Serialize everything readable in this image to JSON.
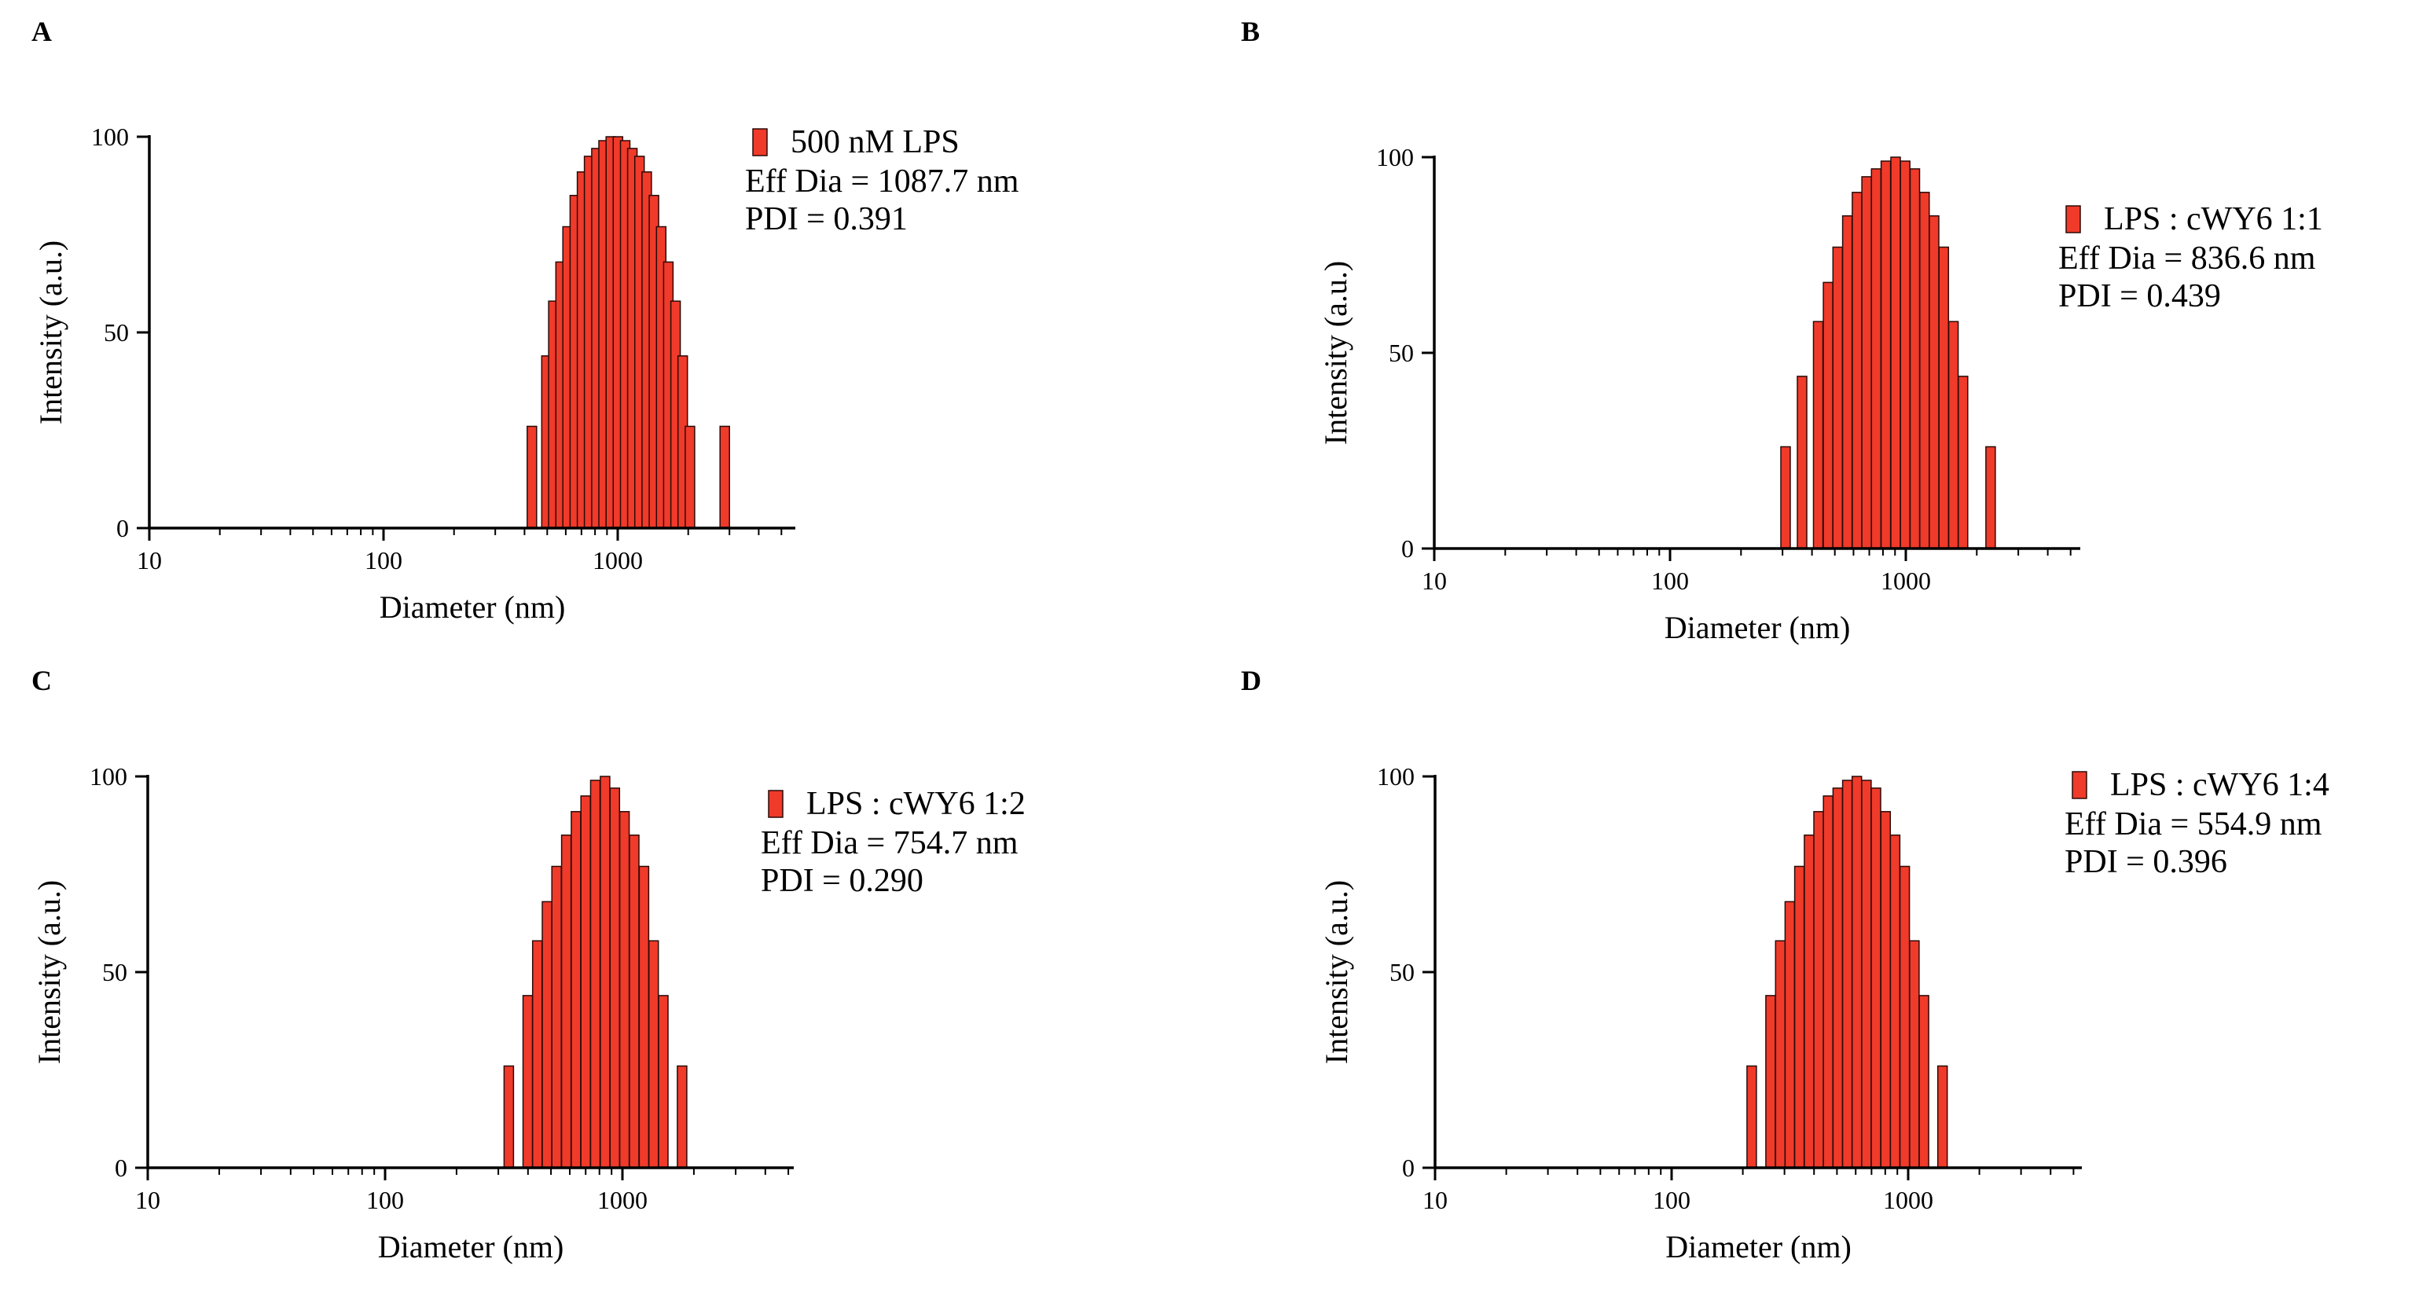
{
  "chart_data": [
    {
      "type": "bar",
      "panel": "A",
      "x": [
        430,
        496,
        531,
        570,
        611,
        656,
        704,
        755,
        811,
        870,
        934,
        1002,
        1076,
        1155,
        1239,
        1330,
        1428,
        1533,
        1645,
        1766,
        1895,
        2034,
        2184,
        2344,
        2865
      ],
      "values": [
        26,
        44,
        58,
        68,
        77,
        85,
        91,
        95,
        97,
        99,
        100,
        100,
        99,
        97,
        95,
        91,
        85,
        77,
        68,
        58,
        44,
        26,
        0,
        0,
        26
      ],
      "legend": "500 nM LPS",
      "annotations": [
        "Eff Dia = 1087.7 nm",
        "PDI = 0.391"
      ],
      "xlabel": "Diameter (nm)",
      "ylabel": "Intensity (a.u.)",
      "xscale": "log",
      "xlim": [
        10,
        5000
      ],
      "ylim": [
        0,
        100
      ],
      "xticks": [
        "10",
        "100",
        "1000"
      ],
      "yticks": [
        "0",
        "50",
        "100"
      ]
    },
    {
      "type": "bar",
      "panel": "B",
      "x": [
        309,
        363,
        425,
        468,
        514,
        565,
        621,
        682,
        749,
        823,
        905,
        994,
        1092,
        1200,
        1318,
        1449,
        1592,
        1749,
        2289
      ],
      "values": [
        26,
        44,
        58,
        68,
        77,
        85,
        91,
        95,
        97,
        99,
        100,
        99,
        97,
        91,
        85,
        77,
        58,
        44,
        26
      ],
      "legend": "LPS : cWY6 1:1",
      "annotations": [
        "Eff Dia = 836.6 nm",
        "PDI = 0.439"
      ],
      "xlabel": "Diameter (nm)",
      "ylabel": "Intensity (a.u.)",
      "xscale": "log",
      "xlim": [
        10,
        5000
      ],
      "ylim": [
        0,
        100
      ],
      "xticks": [
        "10",
        "100",
        "1000"
      ],
      "yticks": [
        "0",
        "50",
        "100"
      ]
    },
    {
      "type": "bar",
      "panel": "C",
      "x": [
        332,
        399,
        438,
        481,
        528,
        580,
        637,
        700,
        769,
        845,
        929,
        1020,
        1121,
        1232,
        1353,
        1487,
        1784
      ],
      "values": [
        26,
        44,
        58,
        68,
        77,
        85,
        91,
        95,
        99,
        100,
        97,
        91,
        85,
        77,
        58,
        44,
        26
      ],
      "legend": "LPS : cWY6 1:2",
      "annotations": [
        "Eff Dia = 754.7 nm",
        "PDI = 0.290"
      ],
      "xlabel": "Diameter (nm)",
      "ylabel": "Intensity (a.u.)",
      "xscale": "log",
      "xlim": [
        10,
        5000
      ],
      "ylim": [
        0,
        100
      ],
      "xticks": [
        "10",
        "100",
        "1000"
      ],
      "yticks": [
        "0",
        "50",
        "100"
      ]
    },
    {
      "type": "bar",
      "panel": "D",
      "x": [
        218,
        262,
        288,
        316,
        347,
        381,
        418,
        459,
        504,
        553,
        607,
        666,
        731,
        803,
        881,
        967,
        1062,
        1166,
        1397
      ],
      "values": [
        26,
        44,
        58,
        68,
        77,
        85,
        91,
        95,
        97,
        99,
        100,
        99,
        97,
        91,
        85,
        77,
        58,
        44,
        26
      ],
      "legend": "LPS : cWY6 1:4",
      "annotations": [
        "Eff Dia = 554.9 nm",
        "PDI = 0.396"
      ],
      "xlabel": "Diameter (nm)",
      "ylabel": "Intensity (a.u.)",
      "xscale": "log",
      "xlim": [
        10,
        5000
      ],
      "ylim": [
        0,
        100
      ],
      "xticks": [
        "10",
        "100",
        "1000"
      ],
      "yticks": [
        "0",
        "50",
        "100"
      ]
    }
  ],
  "colors": {
    "bar": "#f03a2a",
    "bar_edge": "#2a0b08",
    "axis": "#000000"
  }
}
